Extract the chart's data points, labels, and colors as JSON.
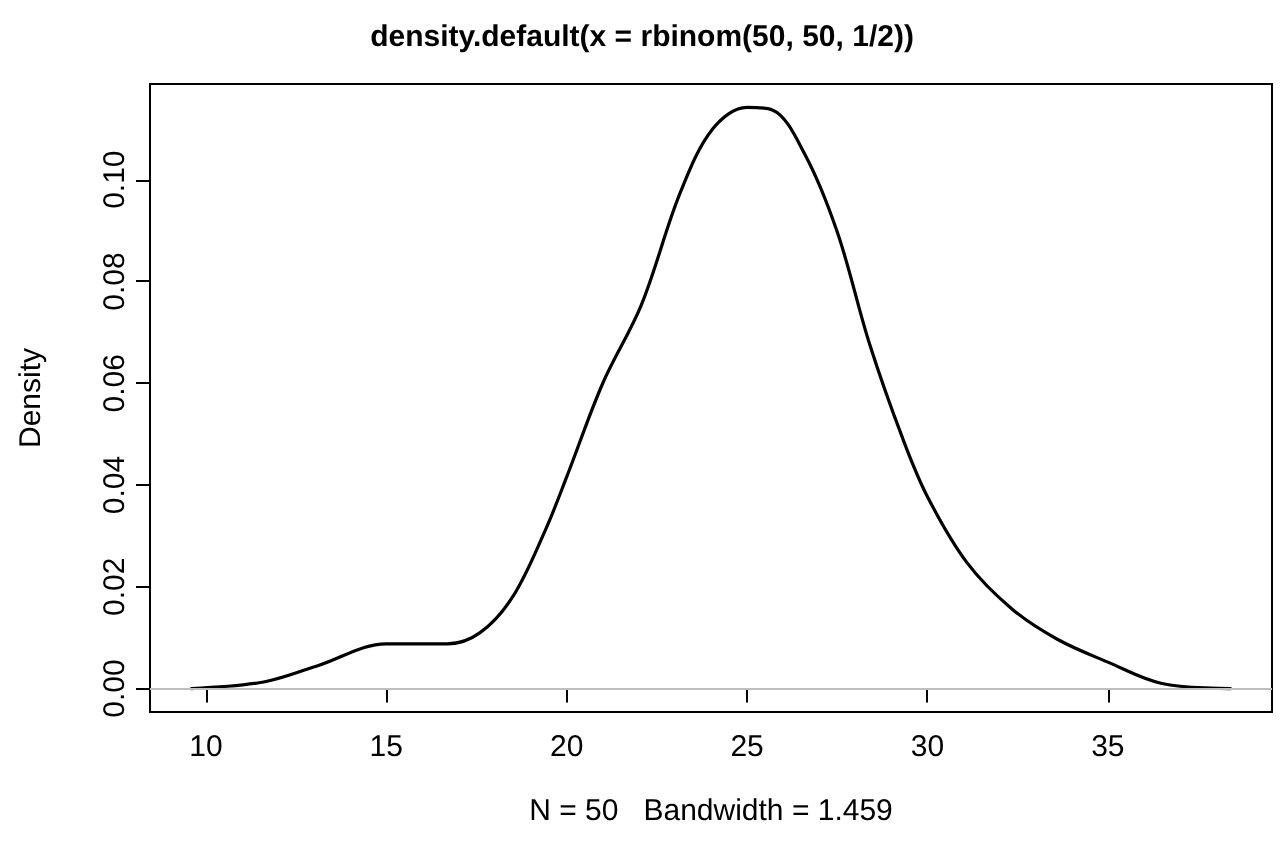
{
  "chart_data": {
    "type": "line",
    "title": "density.default(x = rbinom(50, 50, 1/2))",
    "xlabel": "N = 50   Bandwidth = 1.459",
    "ylabel": "Density",
    "x": [
      9.6,
      11.6,
      13.1,
      15,
      16.7,
      17.6,
      18.5,
      19.4,
      20,
      21,
      22.07,
      23.15,
      24.05,
      25,
      25.7,
      26.6,
      27.5,
      28.4,
      29.3,
      30,
      31.1,
      32.35,
      33.6,
      35,
      36.5,
      38.4
    ],
    "series": [
      {
        "color": "#000000",
        "values": [
          0,
          0.0013,
          0.0045,
          0.0088,
          0.0088,
          0.011,
          0.018,
          0.031,
          0.0416,
          0.06,
          0.0754,
          0.0975,
          0.11,
          0.1142,
          0.1137,
          0.105,
          0.0897,
          0.0676,
          0.0494,
          0.0377,
          0.0247,
          0.0156,
          0.0097,
          0.0052,
          0.001,
          0
        ]
      }
    ],
    "xlim": [
      8.45,
      39.55
    ],
    "xticks": [
      10,
      15,
      20,
      25,
      30,
      35
    ],
    "ylim": [
      -0.0046,
      0.1188
    ],
    "yticks": [
      {
        "value": 0,
        "label": "0.00"
      },
      {
        "value": 0.02,
        "label": "0.02"
      },
      {
        "value": 0.04,
        "label": "0.04"
      },
      {
        "value": 0.06,
        "label": "0.06"
      },
      {
        "value": 0.08,
        "label": "0.08"
      },
      {
        "value": 0.1,
        "label": "0.10"
      }
    ],
    "ref_lines": [
      {
        "axis": "y",
        "value": 0,
        "color": "#bebebe",
        "line_style": "solid"
      }
    ],
    "marker": "none",
    "line_style": "solid"
  }
}
